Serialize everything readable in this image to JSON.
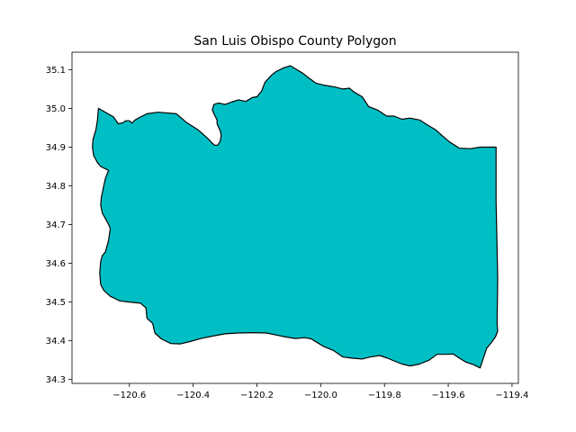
{
  "chart_data": {
    "type": "map-polygon",
    "title": "San Luis Obispo County Polygon",
    "xlim": [
      -120.78,
      -119.38
    ],
    "ylim": [
      34.29,
      35.145
    ],
    "x_ticks": [
      -120.6,
      -120.4,
      -120.2,
      -120.0,
      -119.8,
      -119.6,
      -119.4
    ],
    "x_tick_labels": [
      "−120.6",
      "−120.4",
      "−120.2",
      "−120.0",
      "−119.8",
      "−119.6",
      "−119.4"
    ],
    "y_ticks": [
      34.3,
      34.4,
      34.5,
      34.6,
      34.7,
      34.8,
      34.9,
      35.0,
      35.1
    ],
    "y_tick_labels": [
      "34.3",
      "34.4",
      "34.5",
      "34.6",
      "34.7",
      "34.8",
      "34.9",
      "35.0",
      "35.1"
    ],
    "fill_color": "#00bfc4",
    "edge_color": "#000000",
    "polygon": [
      [
        -120.697,
        35.0
      ],
      [
        -120.65,
        34.978
      ],
      [
        -120.635,
        34.96
      ],
      [
        -120.62,
        34.963
      ],
      [
        -120.612,
        34.968
      ],
      [
        -120.6,
        34.968
      ],
      [
        -120.592,
        34.962
      ],
      [
        -120.582,
        34.97
      ],
      [
        -120.565,
        34.978
      ],
      [
        -120.545,
        34.986
      ],
      [
        -120.51,
        34.99
      ],
      [
        -120.453,
        34.986
      ],
      [
        -120.42,
        34.963
      ],
      [
        -120.385,
        34.945
      ],
      [
        -120.355,
        34.923
      ],
      [
        -120.34,
        34.91
      ],
      [
        -120.333,
        34.905
      ],
      [
        -120.323,
        34.905
      ],
      [
        -120.315,
        34.915
      ],
      [
        -120.312,
        34.93
      ],
      [
        -120.315,
        34.942
      ],
      [
        -120.325,
        34.96
      ],
      [
        -120.325,
        34.97
      ],
      [
        -120.335,
        34.986
      ],
      [
        -120.34,
        34.996
      ],
      [
        -120.335,
        35.01
      ],
      [
        -120.32,
        35.014
      ],
      [
        -120.3,
        35.01
      ],
      [
        -120.28,
        35.016
      ],
      [
        -120.258,
        35.022
      ],
      [
        -120.235,
        35.018
      ],
      [
        -120.215,
        35.028
      ],
      [
        -120.2,
        35.03
      ],
      [
        -120.185,
        35.045
      ],
      [
        -120.175,
        35.067
      ],
      [
        -120.155,
        35.085
      ],
      [
        -120.14,
        35.095
      ],
      [
        -120.115,
        35.105
      ],
      [
        -120.095,
        35.11
      ],
      [
        -120.075,
        35.1
      ],
      [
        -120.055,
        35.09
      ],
      [
        -120.04,
        35.08
      ],
      [
        -120.015,
        35.065
      ],
      [
        -119.99,
        35.06
      ],
      [
        -119.955,
        35.055
      ],
      [
        -119.93,
        35.05
      ],
      [
        -119.91,
        35.052
      ],
      [
        -119.895,
        35.042
      ],
      [
        -119.87,
        35.03
      ],
      [
        -119.85,
        35.005
      ],
      [
        -119.82,
        34.995
      ],
      [
        -119.793,
        34.98
      ],
      [
        -119.77,
        34.98
      ],
      [
        -119.745,
        34.972
      ],
      [
        -119.72,
        34.975
      ],
      [
        -119.69,
        34.97
      ],
      [
        -119.665,
        34.957
      ],
      [
        -119.64,
        34.945
      ],
      [
        -119.62,
        34.93
      ],
      [
        -119.595,
        34.913
      ],
      [
        -119.565,
        34.897
      ],
      [
        -119.53,
        34.896
      ],
      [
        -119.5,
        34.9
      ],
      [
        -119.45,
        34.9
      ],
      [
        -119.45,
        34.76
      ],
      [
        -119.445,
        34.56
      ],
      [
        -119.447,
        34.445
      ],
      [
        -119.445,
        34.425
      ],
      [
        -119.452,
        34.41
      ],
      [
        -119.465,
        34.395
      ],
      [
        -119.48,
        34.38
      ],
      [
        -119.5,
        34.33
      ],
      [
        -119.52,
        34.338
      ],
      [
        -119.545,
        34.345
      ],
      [
        -119.565,
        34.355
      ],
      [
        -119.585,
        34.366
      ],
      [
        -119.61,
        34.365
      ],
      [
        -119.635,
        34.365
      ],
      [
        -119.66,
        34.35
      ],
      [
        -119.69,
        34.34
      ],
      [
        -119.72,
        34.335
      ],
      [
        -119.745,
        34.34
      ],
      [
        -119.77,
        34.348
      ],
      [
        -119.79,
        34.355
      ],
      [
        -119.815,
        34.362
      ],
      [
        -119.845,
        34.358
      ],
      [
        -119.87,
        34.353
      ],
      [
        -119.9,
        34.355
      ],
      [
        -119.93,
        34.358
      ],
      [
        -119.96,
        34.375
      ],
      [
        -119.99,
        34.385
      ],
      [
        -120.01,
        34.395
      ],
      [
        -120.03,
        34.405
      ],
      [
        -120.05,
        34.408
      ],
      [
        -120.08,
        34.406
      ],
      [
        -120.11,
        34.41
      ],
      [
        -120.14,
        34.415
      ],
      [
        -120.17,
        34.42
      ],
      [
        -120.21,
        34.421
      ],
      [
        -120.26,
        34.42
      ],
      [
        -120.3,
        34.418
      ],
      [
        -120.34,
        34.412
      ],
      [
        -120.375,
        34.406
      ],
      [
        -120.41,
        34.398
      ],
      [
        -120.44,
        34.392
      ],
      [
        -120.47,
        34.393
      ],
      [
        -120.5,
        34.405
      ],
      [
        -120.52,
        34.42
      ],
      [
        -120.527,
        34.445
      ],
      [
        -120.545,
        34.458
      ],
      [
        -120.548,
        34.485
      ],
      [
        -120.565,
        34.497
      ],
      [
        -120.6,
        34.5
      ],
      [
        -120.63,
        34.503
      ],
      [
        -120.66,
        34.515
      ],
      [
        -120.68,
        34.53
      ],
      [
        -120.69,
        34.545
      ],
      [
        -120.693,
        34.575
      ],
      [
        -120.69,
        34.605
      ],
      [
        -120.685,
        34.62
      ],
      [
        -120.675,
        34.63
      ],
      [
        -120.665,
        34.66
      ],
      [
        -120.66,
        34.69
      ],
      [
        -120.665,
        34.7
      ],
      [
        -120.675,
        34.715
      ],
      [
        -120.685,
        34.73
      ],
      [
        -120.69,
        34.75
      ],
      [
        -120.688,
        34.77
      ],
      [
        -120.683,
        34.79
      ],
      [
        -120.675,
        34.82
      ],
      [
        -120.665,
        34.84
      ],
      [
        -120.69,
        34.85
      ],
      [
        -120.7,
        34.86
      ],
      [
        -120.712,
        34.878
      ],
      [
        -120.716,
        34.9
      ],
      [
        -120.714,
        34.92
      ],
      [
        -120.705,
        34.945
      ],
      [
        -120.7,
        34.97
      ],
      [
        -120.697,
        35.0
      ]
    ]
  }
}
